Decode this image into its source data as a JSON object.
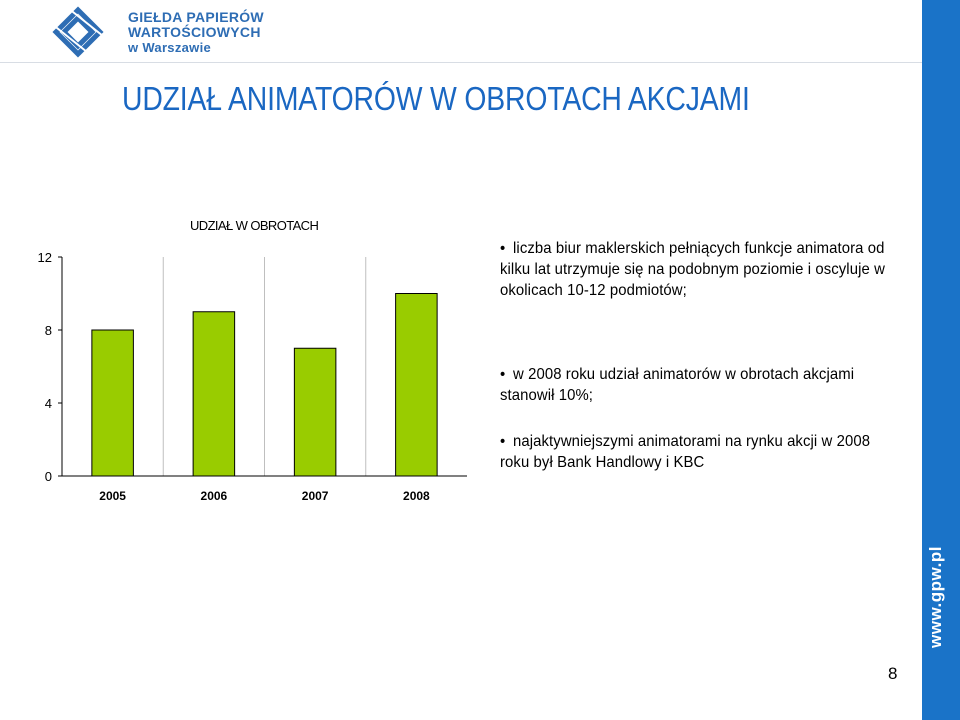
{
  "header": {
    "logo_lines": [
      "GIEŁDA PAPIERÓW",
      "WARTOŚCIOWYCH",
      "w Warszawie"
    ]
  },
  "title": "UDZIAŁ ANIMATORÓW W OBROTACH AKCJAMI",
  "chart_data": {
    "type": "bar",
    "title": "UDZIAŁ W OBROTACH",
    "categories": [
      "2005",
      "2006",
      "2007",
      "2008"
    ],
    "values": [
      8,
      9,
      7,
      10
    ],
    "ylim": [
      0,
      12
    ],
    "yticks": [
      "0",
      "4",
      "8",
      "12"
    ],
    "xlabel": "",
    "ylabel": "",
    "bar_color": "#99cc00",
    "grid": "vertical lines between categories"
  },
  "bullets": [
    "liczba biur maklerskich pełniących funkcje animatora od kilku lat utrzymuje się na podobnym poziomie i oscyluje w okolicach 10-12 podmiotów;",
    "w 2008 roku udział animatorów w obrotach akcjami stanowił 10%;",
    "najaktywniejszymi animatorami na rynku akcji w 2008 roku był Bank Handlowy i KBC"
  ],
  "sidebar": {
    "url": "www.gpw.pl",
    "color": "#1a73c8"
  },
  "page_number": "8"
}
